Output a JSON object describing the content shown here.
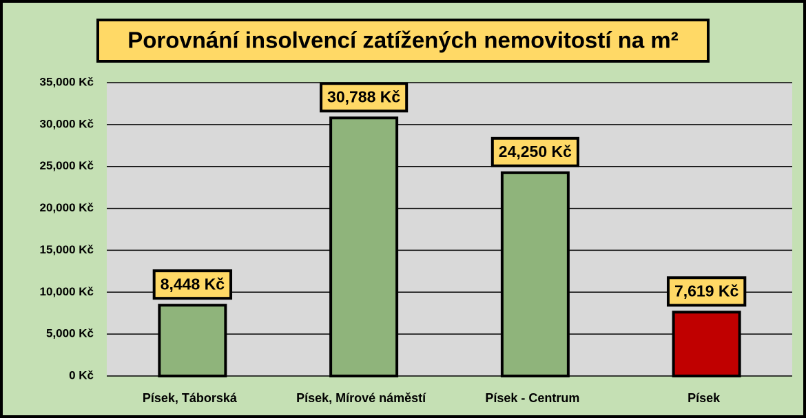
{
  "chart_data": {
    "type": "bar",
    "title": "Porovnání insolvencí zatížených nemovitostí na m²",
    "categories": [
      "Písek, Táborská",
      "Písek, Mírové náměstí",
      "Písek - Centrum",
      "Písek"
    ],
    "values": [
      8448,
      30788,
      24250,
      7619
    ],
    "value_labels": [
      "8,448 Kč",
      "30,788 Kč",
      "24,250 Kč",
      "7,619 Kč"
    ],
    "colors": [
      "#8fb47b",
      "#8fb47b",
      "#8fb47b",
      "#c00000"
    ],
    "ylim": [
      0,
      35000
    ],
    "yticks": [
      {
        "value": 0,
        "label": "0 Kč"
      },
      {
        "value": 5000,
        "label": "5,000 Kč"
      },
      {
        "value": 10000,
        "label": "10,000 Kč"
      },
      {
        "value": 15000,
        "label": "15,000 Kč"
      },
      {
        "value": 20000,
        "label": "20,000 Kč"
      },
      {
        "value": 25000,
        "label": "25,000 Kč"
      },
      {
        "value": 30000,
        "label": "30,000 Kč"
      },
      {
        "value": 35000,
        "label": "35,000 Kč"
      }
    ],
    "grid": true
  }
}
